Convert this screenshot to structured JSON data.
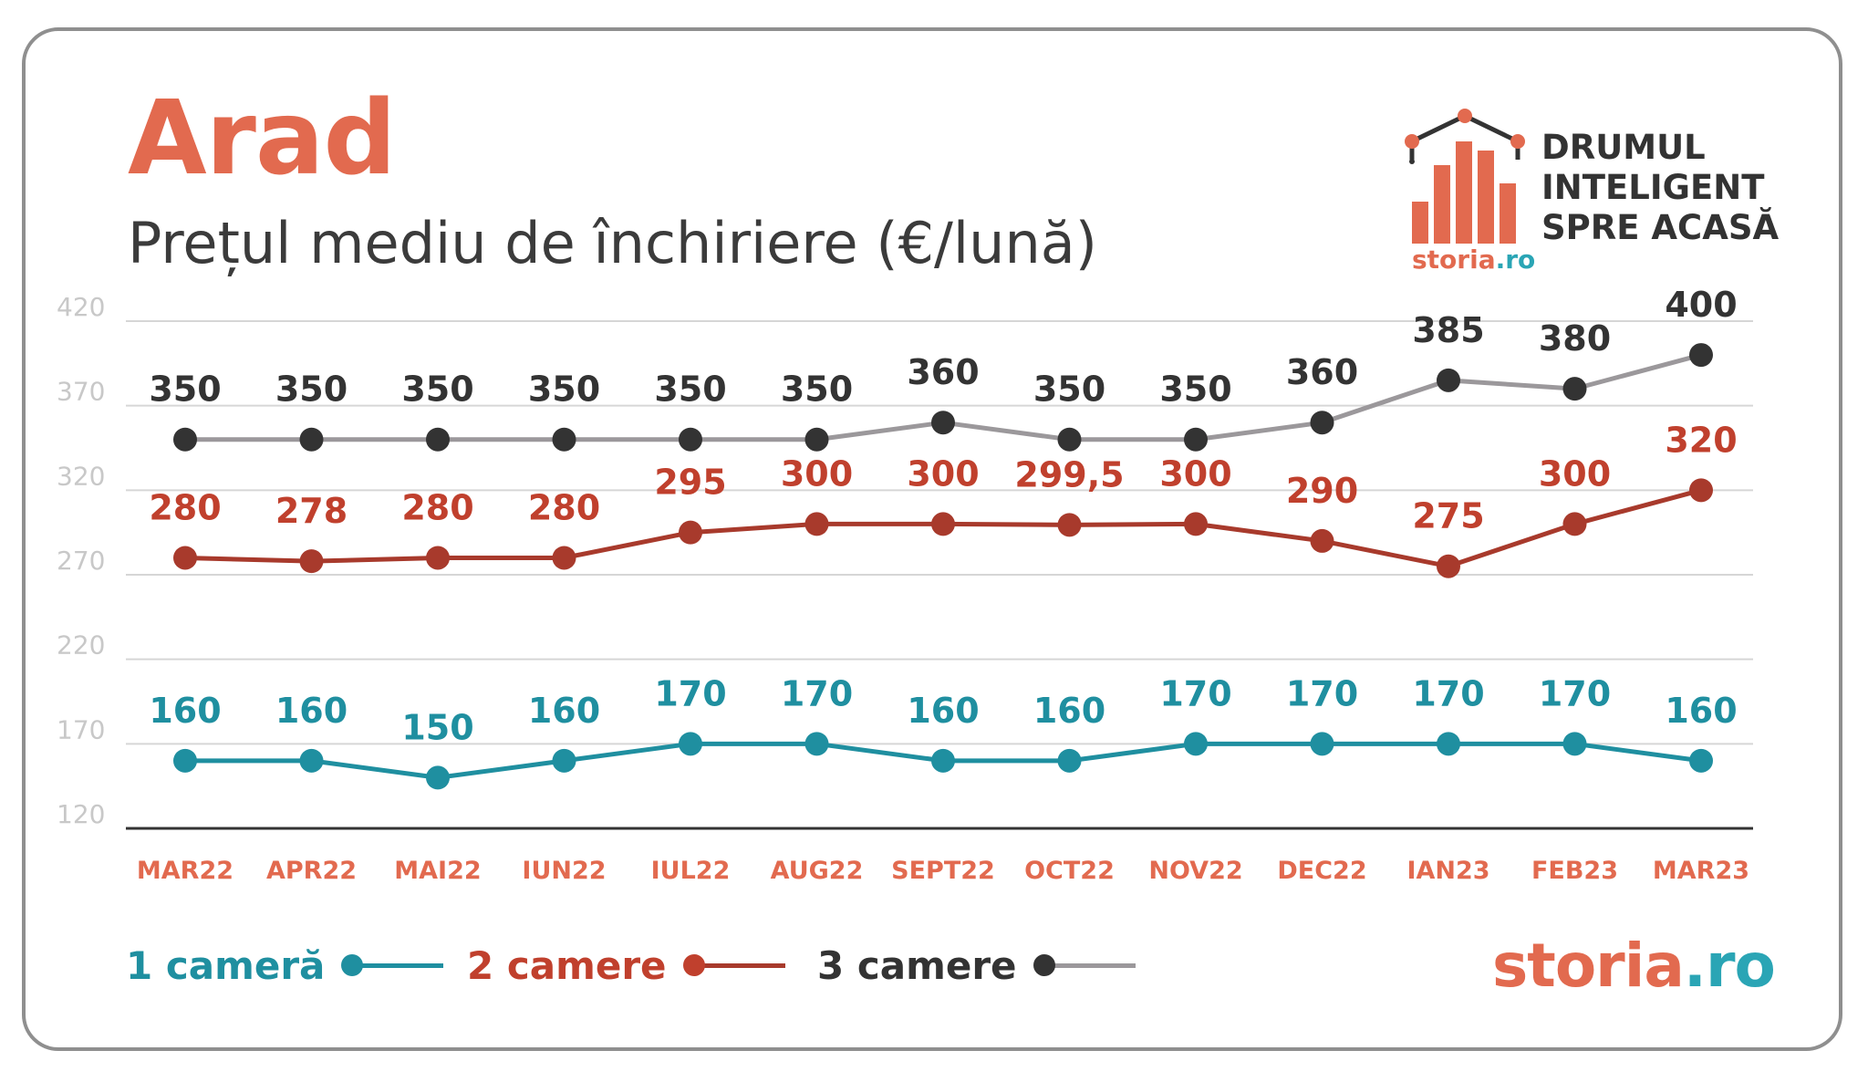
{
  "header": {
    "title": "Arad",
    "subtitle": "Prețul mediu de închiriere (€/lună)"
  },
  "logo": {
    "lines": [
      "DRUMUL",
      "INTELIGENT",
      "SPRE ACASĂ"
    ],
    "brand_name": "storia",
    "brand_tld": ".ro"
  },
  "footer": {
    "brand_name": "storia",
    "brand_tld": ".ro"
  },
  "colors": {
    "one_room": "#1f8fa0",
    "two_rooms_line": "#a83a2c",
    "two_rooms_label": "#c0402d",
    "three_rooms_line": "#9b989b",
    "three_rooms_marker": "#333333",
    "axis_label": "#e26a4f",
    "grid": "#d6d6d6",
    "tick": "#c8c8c8"
  },
  "chart_data": {
    "type": "line",
    "title": "Prețul mediu de închiriere (€/lună)",
    "categories": [
      "MAR22",
      "APR22",
      "MAI22",
      "IUN22",
      "IUL22",
      "AUG22",
      "SEPT22",
      "OCT22",
      "NOV22",
      "DEC22",
      "IAN23",
      "FEB23",
      "MAR23"
    ],
    "ylim": [
      120,
      420
    ],
    "yticks": [
      120,
      170,
      220,
      270,
      320,
      370,
      420
    ],
    "grid": true,
    "legend": "bottom",
    "series": [
      {
        "name": "1 cameră",
        "values": [
          160,
          160,
          150,
          160,
          170,
          170,
          160,
          160,
          170,
          170,
          170,
          170,
          160
        ],
        "labels": [
          "160",
          "160",
          "150",
          "160",
          "170",
          "170",
          "160",
          "160",
          "170",
          "170",
          "170",
          "170",
          "160"
        ]
      },
      {
        "name": "2 camere",
        "values": [
          280,
          278,
          280,
          280,
          295,
          300,
          300,
          299.5,
          300,
          290,
          275,
          300,
          320
        ],
        "labels": [
          "280",
          "278",
          "280",
          "280",
          "295",
          "300",
          "300",
          "299,5",
          "300",
          "290",
          "275",
          "300",
          "320"
        ]
      },
      {
        "name": "3 camere",
        "values": [
          350,
          350,
          350,
          350,
          350,
          350,
          360,
          350,
          350,
          360,
          385,
          380,
          400
        ],
        "labels": [
          "350",
          "350",
          "350",
          "350",
          "350",
          "350",
          "360",
          "350",
          "350",
          "360",
          "385",
          "380",
          "400"
        ]
      }
    ]
  }
}
